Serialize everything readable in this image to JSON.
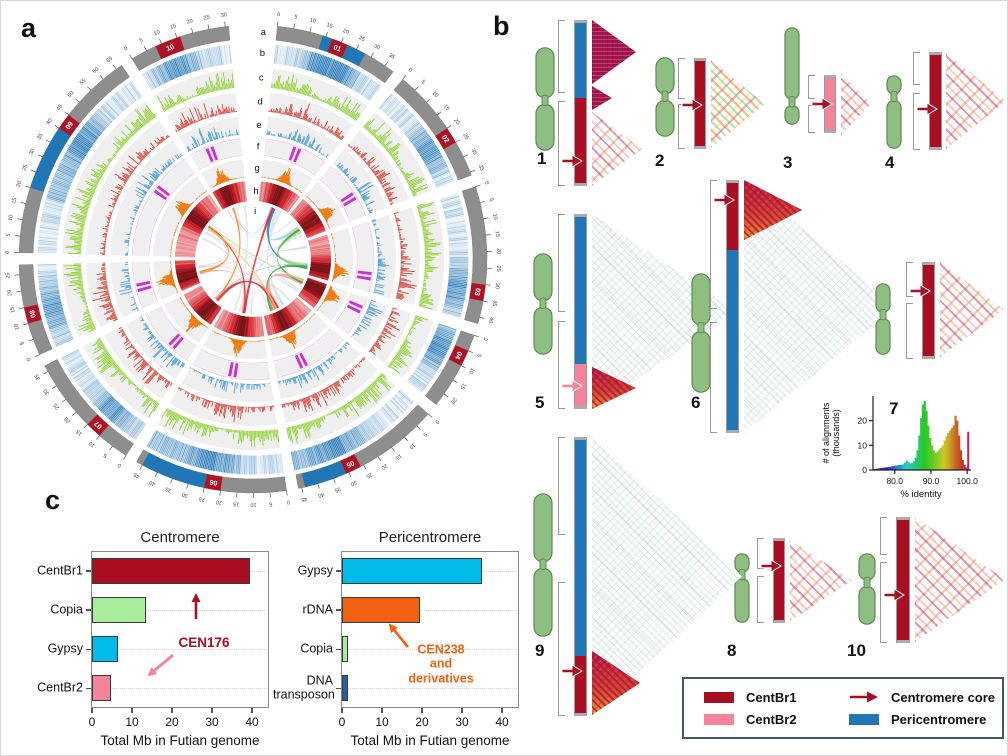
{
  "figure": {
    "panel_a_label": "a",
    "panel_b_label": "b",
    "panel_c_label": "c"
  },
  "colors": {
    "centbr1": "#A90E22",
    "centbr2": "#F5849B",
    "pericentromere": "#2176B6",
    "gypsy": "#00BCEB",
    "copia": "#A8ED9E",
    "rdna": "#F26011",
    "dna_transposon": "#1A64A8",
    "ideogram": "#8FBE83",
    "ideogram_border": "#5C8A50",
    "chromosome_gray": "#8E8E8E",
    "centromere_block": "#B01226",
    "track_green": "#8CD42E",
    "track_red": "#D9453A",
    "track_blue": "#52A3DB",
    "track_magenta": "#CE30CE",
    "track_orange": "#F07C12"
  },
  "circos": {
    "track_labels": [
      "a",
      "b",
      "c",
      "d",
      "e",
      "f",
      "g",
      "h",
      "i"
    ],
    "chromosomes": [
      {
        "label": "01",
        "size": 38,
        "cent": [
          17,
          22
        ],
        "peri": [
          [
            14,
            17
          ],
          [
            22,
            28
          ]
        ]
      },
      {
        "label": "02",
        "size": 36,
        "cent": [
          20,
          25
        ],
        "peri": []
      },
      {
        "label": "03",
        "size": 42,
        "cent": [
          30,
          35
        ],
        "peri": []
      },
      {
        "label": "04",
        "size": 24,
        "cent": [
          5,
          10
        ],
        "peri": []
      },
      {
        "label": "05",
        "size": 46,
        "cent": [
          26,
          31
        ],
        "peri": [
          [
            31,
            44
          ]
        ]
      },
      {
        "label": "06",
        "size": 47,
        "cent": [
          20,
          25
        ],
        "peri": [
          [
            25,
            45
          ]
        ]
      },
      {
        "label": "07",
        "size": 37,
        "cent": [
          10,
          15
        ],
        "peri": []
      },
      {
        "label": "08",
        "size": 28,
        "cent": [
          10,
          15
        ],
        "peri": []
      },
      {
        "label": "09",
        "size": 67,
        "cent": [
          40,
          45
        ],
        "peri": [
          [
            20,
            40
          ]
        ]
      },
      {
        "label": "10",
        "size": 31,
        "cent": [
          8,
          16
        ],
        "peri": []
      }
    ],
    "links": [
      {
        "c1": 0,
        "p1": 19,
        "c2": 1,
        "p2": 20,
        "w": 6,
        "color": "#A6CEE3"
      },
      {
        "c1": 0,
        "p1": 20,
        "c2": 2,
        "p2": 33,
        "w": 5,
        "color": "#1F78B4"
      },
      {
        "c1": 1,
        "p1": 23,
        "c2": 2,
        "p2": 31,
        "w": 7,
        "color": "#B2DF8A"
      },
      {
        "c1": 2,
        "p1": 32,
        "c2": 4,
        "p2": 35,
        "w": 5,
        "color": "#33A02C"
      },
      {
        "c1": 3,
        "p1": 7,
        "c2": 4,
        "p2": 30,
        "w": 8,
        "color": "#FB9A99"
      },
      {
        "c1": 6,
        "p1": 11,
        "c2": 4,
        "p2": 28,
        "w": 6,
        "color": "#E31A1C"
      },
      {
        "c1": 0,
        "p1": 18,
        "c2": 5,
        "p2": 22,
        "w": 4,
        "color": "#E31A1C"
      },
      {
        "c1": 7,
        "p1": 12,
        "c2": 8,
        "p2": 42,
        "w": 4,
        "color": "#FF7F00"
      },
      {
        "c1": 6,
        "p1": 12,
        "c2": 9,
        "p2": 12,
        "w": 3,
        "color": "#FF7F00"
      },
      {
        "c1": 5,
        "p1": 23,
        "c2": 8,
        "p2": 43,
        "w": 3,
        "color": "#E31A1C"
      },
      {
        "c1": 1,
        "p1": 22,
        "c2": 3,
        "p2": 8,
        "w": 3,
        "color": "#33A02C"
      },
      {
        "c1": 4,
        "p1": 29,
        "c2": 8,
        "p2": 41,
        "w": 3,
        "color": "#FDBF6F"
      },
      {
        "c1": 9,
        "p1": 11,
        "c2": 0,
        "p2": 17,
        "w": 2,
        "color": "#CAB2D6"
      },
      {
        "c1": 2,
        "p1": 30,
        "c2": 6,
        "p2": 13,
        "w": 2,
        "color": "#A6CEE3"
      },
      {
        "c1": 8,
        "p1": 44,
        "c2": 3,
        "p2": 6,
        "w": 2,
        "color": "#B2DF8A"
      },
      {
        "c1": 5,
        "p1": 24,
        "c2": 7,
        "p2": 11,
        "w": 2,
        "color": "#FB9A99"
      }
    ]
  },
  "panel_b": {
    "chromosomes": [
      {
        "number": "1",
        "bar": [
          {
            "type": "pericentromere",
            "frac": 0.47
          },
          {
            "type": "centbr1",
            "frac": 0.53
          }
        ],
        "arrow_at": 0.85,
        "arrow_color": "centbr1"
      },
      {
        "number": "2",
        "bar": [
          {
            "type": "centbr1",
            "frac": 1
          }
        ],
        "arrow_at": 0.52,
        "arrow_color": "centbr1"
      },
      {
        "number": "3",
        "bar": [
          {
            "type": "centbr2",
            "frac": 1
          }
        ],
        "arrow_at": 0.5,
        "arrow_color": "centbr1"
      },
      {
        "number": "4",
        "bar": [
          {
            "type": "centbr1",
            "frac": 1
          }
        ],
        "arrow_at": 0.58,
        "arrow_color": "centbr1"
      },
      {
        "number": "5",
        "bar": [
          {
            "type": "pericentromere",
            "frac": 0.78
          },
          {
            "type": "centbr2",
            "frac": 0.22
          }
        ],
        "arrow_at": 0.88,
        "arrow_color": "centbr2"
      },
      {
        "number": "6",
        "bar": [
          {
            "type": "centbr1",
            "frac": 0.27
          },
          {
            "type": "pericentromere",
            "frac": 0.73
          }
        ],
        "arrow_at": 0.08,
        "arrow_color": "centbr1"
      },
      {
        "number": "7",
        "bar": [
          {
            "type": "centbr1",
            "frac": 1
          }
        ],
        "arrow_at": 0.3,
        "arrow_color": "centbr1"
      },
      {
        "number": "8",
        "bar": [
          {
            "type": "centbr1",
            "frac": 1
          }
        ],
        "arrow_at": 0.33,
        "arrow_color": "centbr1"
      },
      {
        "number": "9",
        "bar": [
          {
            "type": "pericentromere",
            "frac": 0.79
          },
          {
            "type": "centbr1",
            "frac": 0.21
          }
        ],
        "arrow_at": 0.84,
        "arrow_color": "centbr1"
      },
      {
        "number": "10",
        "bar": [
          {
            "type": "centbr1",
            "frac": 1
          }
        ],
        "arrow_at": 0.62,
        "arrow_color": "centbr1"
      }
    ]
  },
  "inset": {
    "xlabel": "% identity",
    "ylabel": "# of alignments\n(thousands)",
    "xticks": [
      "80.0",
      "90.0",
      "100.0"
    ],
    "yticks": [
      0,
      10,
      20
    ]
  },
  "chart_data": [
    {
      "type": "bar",
      "orientation": "horizontal",
      "title": "Centromere",
      "categories": [
        "CentBr1",
        "Copia",
        "Gypsy",
        "CentBr2"
      ],
      "values": [
        39.5,
        13.5,
        6.5,
        4.8
      ],
      "colors": [
        "#A90E22",
        "#A8ED9E",
        "#00BCEB",
        "#F5849B"
      ],
      "xlabel": "Total Mb in Futian genome",
      "xlim": [
        0,
        44
      ],
      "xticks": [
        0,
        10,
        20,
        30,
        40
      ],
      "grid": "dotted-row",
      "annotations": [
        {
          "text": "CEN176",
          "color": "#A90E22"
        },
        {
          "kind": "arrow-up",
          "color": "#A90E22",
          "target": "CentBr1"
        },
        {
          "kind": "arrow-down-left",
          "color": "#F5849B",
          "target": "CentBr2"
        }
      ]
    },
    {
      "type": "bar",
      "orientation": "horizontal",
      "title": "Pericentromere",
      "categories": [
        "Gypsy",
        "rDNA",
        "Copia",
        "DNA transposon"
      ],
      "values": [
        35,
        19.5,
        1.5,
        1.5
      ],
      "colors": [
        "#00BCEB",
        "#F26011",
        "#A8ED9E",
        "#1A64A8"
      ],
      "xlabel": "Total Mb in Futian genome",
      "xlim": [
        0,
        44
      ],
      "xticks": [
        0,
        10,
        20,
        30,
        40
      ],
      "grid": "dotted-row",
      "annotations": [
        {
          "text": "CEN238 and\nderivatives",
          "color": "#F26011"
        },
        {
          "kind": "arrow-up-left",
          "color": "#F26011",
          "target": "rDNA"
        }
      ]
    },
    {
      "type": "histogram",
      "xlabel": "% identity",
      "ylabel": "# of alignments (thousands)",
      "x_start": 74,
      "bin_width": 0.5,
      "ylim": [
        0,
        30
      ],
      "values_thousands": [
        0.4,
        0.5,
        0.6,
        0.7,
        0.8,
        0.9,
        1.0,
        1.1,
        1.2,
        1.3,
        1.5,
        1.6,
        1.8,
        1.9,
        2.0,
        2.1,
        2.2,
        3.0,
        3.8,
        3.2,
        2.6,
        2.9,
        3.5,
        5.0,
        8.0,
        14.0,
        21.0,
        26.5,
        28.0,
        24.0,
        18.0,
        13.0,
        10.0,
        8.0,
        7.0,
        7.5,
        8.2,
        9.0,
        10.0,
        12.0,
        13.5,
        15.0,
        16.0,
        17.0,
        18.0,
        22.0,
        20.0,
        14.0,
        8.0,
        4.0,
        2.0,
        1.0,
        15.5
      ]
    }
  ],
  "legend": {
    "items": [
      {
        "label": "CentBr1",
        "swatch": "centbr1"
      },
      {
        "label": "CentBr2",
        "swatch": "centbr2"
      },
      {
        "label": "Centromere core",
        "swatch": "arrow"
      },
      {
        "label": "Pericentromere",
        "swatch": "pericentromere"
      }
    ]
  }
}
